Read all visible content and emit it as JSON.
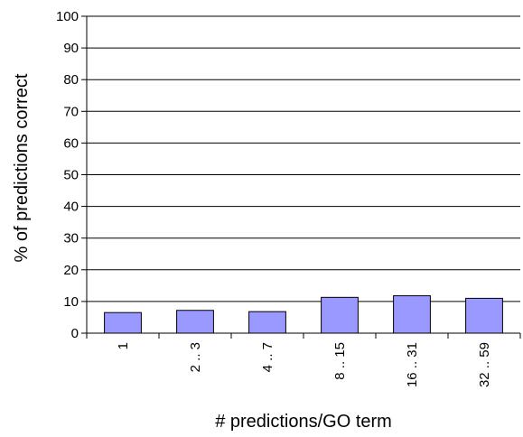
{
  "chart_data": {
    "type": "bar",
    "categories": [
      "1",
      "2 .. 3",
      "4 .. 7",
      "8 .. 15",
      "16 .. 31",
      "32 .. 59"
    ],
    "values": [
      6.5,
      7.2,
      6.8,
      11.3,
      11.8,
      11.0
    ],
    "title": "",
    "xlabel": "# predictions/GO term",
    "ylabel": "% of predictions correct",
    "ylim": [
      0,
      100
    ],
    "yticks": [
      0,
      10,
      20,
      30,
      40,
      50,
      60,
      70,
      80,
      90,
      100
    ],
    "grid": "horizontal",
    "legend": "none",
    "colors": {
      "bar_fill": "#9999ff",
      "bar_stroke": "#000000",
      "grid": "#000000",
      "axis": "#000000"
    }
  }
}
